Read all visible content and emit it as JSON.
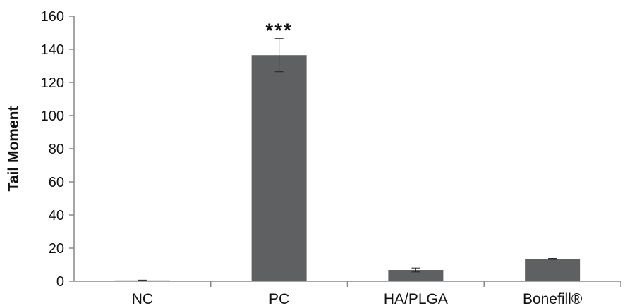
{
  "chart_data": {
    "type": "bar",
    "title": "",
    "xlabel": "",
    "ylabel": "Tail Moment",
    "categories": [
      "NC",
      "PC",
      "HA/PLGA",
      "Bonefill®"
    ],
    "values": [
      0.5,
      136.5,
      6.8,
      13.5
    ],
    "errors": [
      0.2,
      10.0,
      1.2,
      0.3
    ],
    "annotations": [
      {
        "category": "PC",
        "text": "***"
      }
    ],
    "ylim": [
      0,
      160
    ],
    "yticks": [
      0,
      20,
      40,
      60,
      80,
      100,
      120,
      140,
      160
    ],
    "grid": false,
    "legend": "none",
    "colors": {
      "bar": "#5f6062",
      "axis": "#888888",
      "text": "#111111"
    }
  }
}
